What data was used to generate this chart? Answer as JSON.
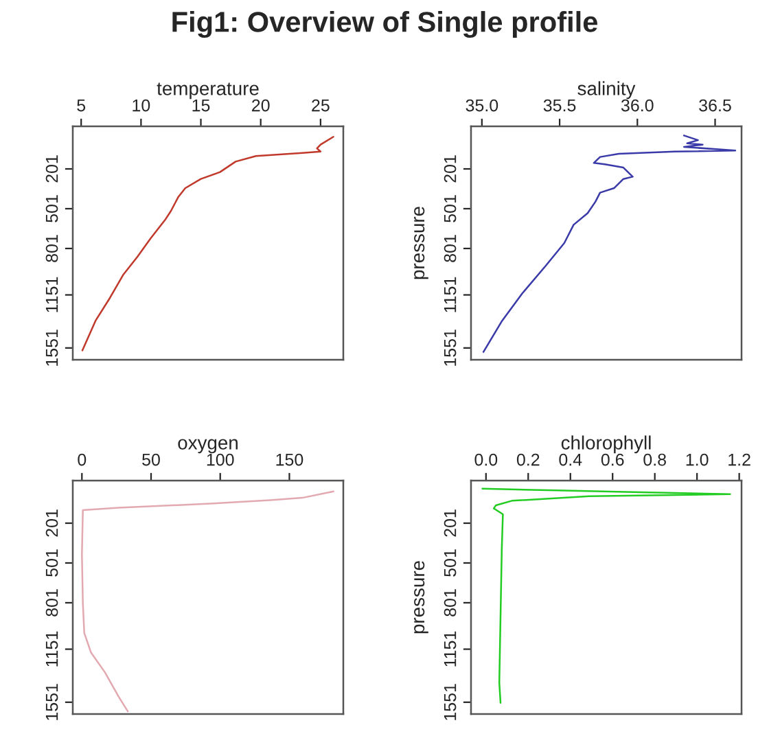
{
  "chart_data": [
    {
      "type": "line",
      "title": "Fig1: Overview of Single profile",
      "xlabel": "temperature",
      "xlim": [
        4.3,
        26.9
      ],
      "xticks": [
        5,
        10,
        15,
        20,
        25
      ],
      "ylim": [
        1640,
        -120
      ],
      "yticks": [
        201,
        501,
        801,
        1151,
        1551
      ],
      "grid": false,
      "legend": false,
      "marker": "none",
      "line_style": "solid",
      "series": [
        {
          "color": "#c0392b",
          "x": [
            26.07,
            25.0,
            24.7,
            25.0,
            23.5,
            19.6,
            17.9,
            16.6,
            15.0,
            13.7,
            13.1,
            12.5,
            12.0,
            10.8,
            9.7,
            8.5,
            7.4,
            6.2,
            5.1
          ],
          "values": [
            -41,
            18,
            46,
            70,
            80,
            104,
            146,
            225,
            277,
            346,
            415,
            518,
            587,
            725,
            863,
            1001,
            1174,
            1346,
            1570
          ]
        }
      ]
    },
    {
      "type": "line",
      "xlabel": "salinity",
      "ylabel": "pressure",
      "xlim": [
        34.93,
        36.67
      ],
      "xticks": [
        {
          "value": 35.0,
          "label": "35.0"
        },
        {
          "value": 35.5,
          "label": "35.5"
        },
        {
          "value": 36.0,
          "label": "36.0"
        },
        {
          "value": 36.5,
          "label": "36.5"
        }
      ],
      "ylim": [
        1640,
        -120
      ],
      "yticks": [
        201,
        501,
        801,
        1151,
        1551
      ],
      "grid": false,
      "legend": false,
      "marker": "none",
      "line_style": "solid",
      "series": [
        {
          "color": "#3a3aa8",
          "x": [
            36.3,
            36.39,
            36.32,
            36.42,
            36.3,
            36.63,
            36.24,
            35.88,
            35.76,
            35.72,
            35.79,
            35.91,
            35.97,
            35.91,
            35.85,
            35.76,
            35.73,
            35.68,
            35.59,
            35.53,
            35.41,
            35.26,
            35.13,
            35.01
          ],
          "values": [
            -51,
            -16,
            8,
            18,
            35,
            63,
            70,
            87,
            111,
            156,
            166,
            191,
            260,
            277,
            346,
            380,
            449,
            535,
            622,
            760,
            932,
            1139,
            1346,
            1581
          ]
        }
      ]
    },
    {
      "type": "line",
      "xlabel": "oxygen",
      "xlim": [
        -6.6,
        189
      ],
      "xticks": [
        0,
        50,
        100,
        150
      ],
      "ylim": [
        1640,
        -120
      ],
      "yticks": [
        201,
        501,
        801,
        1151,
        1551
      ],
      "grid": false,
      "legend": false,
      "marker": "none",
      "line_style": "solid",
      "series": [
        {
          "color": "#e3a9b0",
          "x": [
            181.9,
            159.3,
            136.1,
            92.9,
            26.6,
            0.7,
            0,
            0.7,
            1.7,
            6.6,
            16.6,
            26.6,
            33.2
          ],
          "values": [
            -38,
            10,
            28,
            54,
            84,
            102,
            436,
            806,
            1029,
            1177,
            1325,
            1510,
            1620
          ]
        }
      ]
    },
    {
      "type": "line",
      "xlabel": "chlorophyll",
      "ylabel": "pressure",
      "xlim": [
        -0.071,
        1.211
      ],
      "xticks": [
        {
          "value": 0.0,
          "label": "0.0"
        },
        {
          "value": 0.2,
          "label": "0.2"
        },
        {
          "value": 0.4,
          "label": "0.4"
        },
        {
          "value": 0.6,
          "label": "0.6"
        },
        {
          "value": 0.8,
          "label": "0.8"
        },
        {
          "value": 1.0,
          "label": "1.0"
        },
        {
          "value": 1.2,
          "label": "1.2"
        }
      ],
      "ylim": [
        1640,
        -120
      ],
      "yticks": [
        201,
        501,
        801,
        1151,
        1551
      ],
      "grid": false,
      "legend": false,
      "marker": "none",
      "line_style": "solid",
      "series": [
        {
          "color": "#22cc22",
          "x": [
            -0.017,
            0.338,
            0.662,
            1.157,
            0.489,
            0.123,
            0.047,
            0.037,
            0.08,
            0.075,
            0.069,
            0.063,
            0.069
          ],
          "values": [
            -59,
            -46,
            -35,
            -18,
            -2,
            32,
            66,
            90,
            134,
            388,
            896,
            1403,
            1556
          ]
        }
      ]
    }
  ]
}
